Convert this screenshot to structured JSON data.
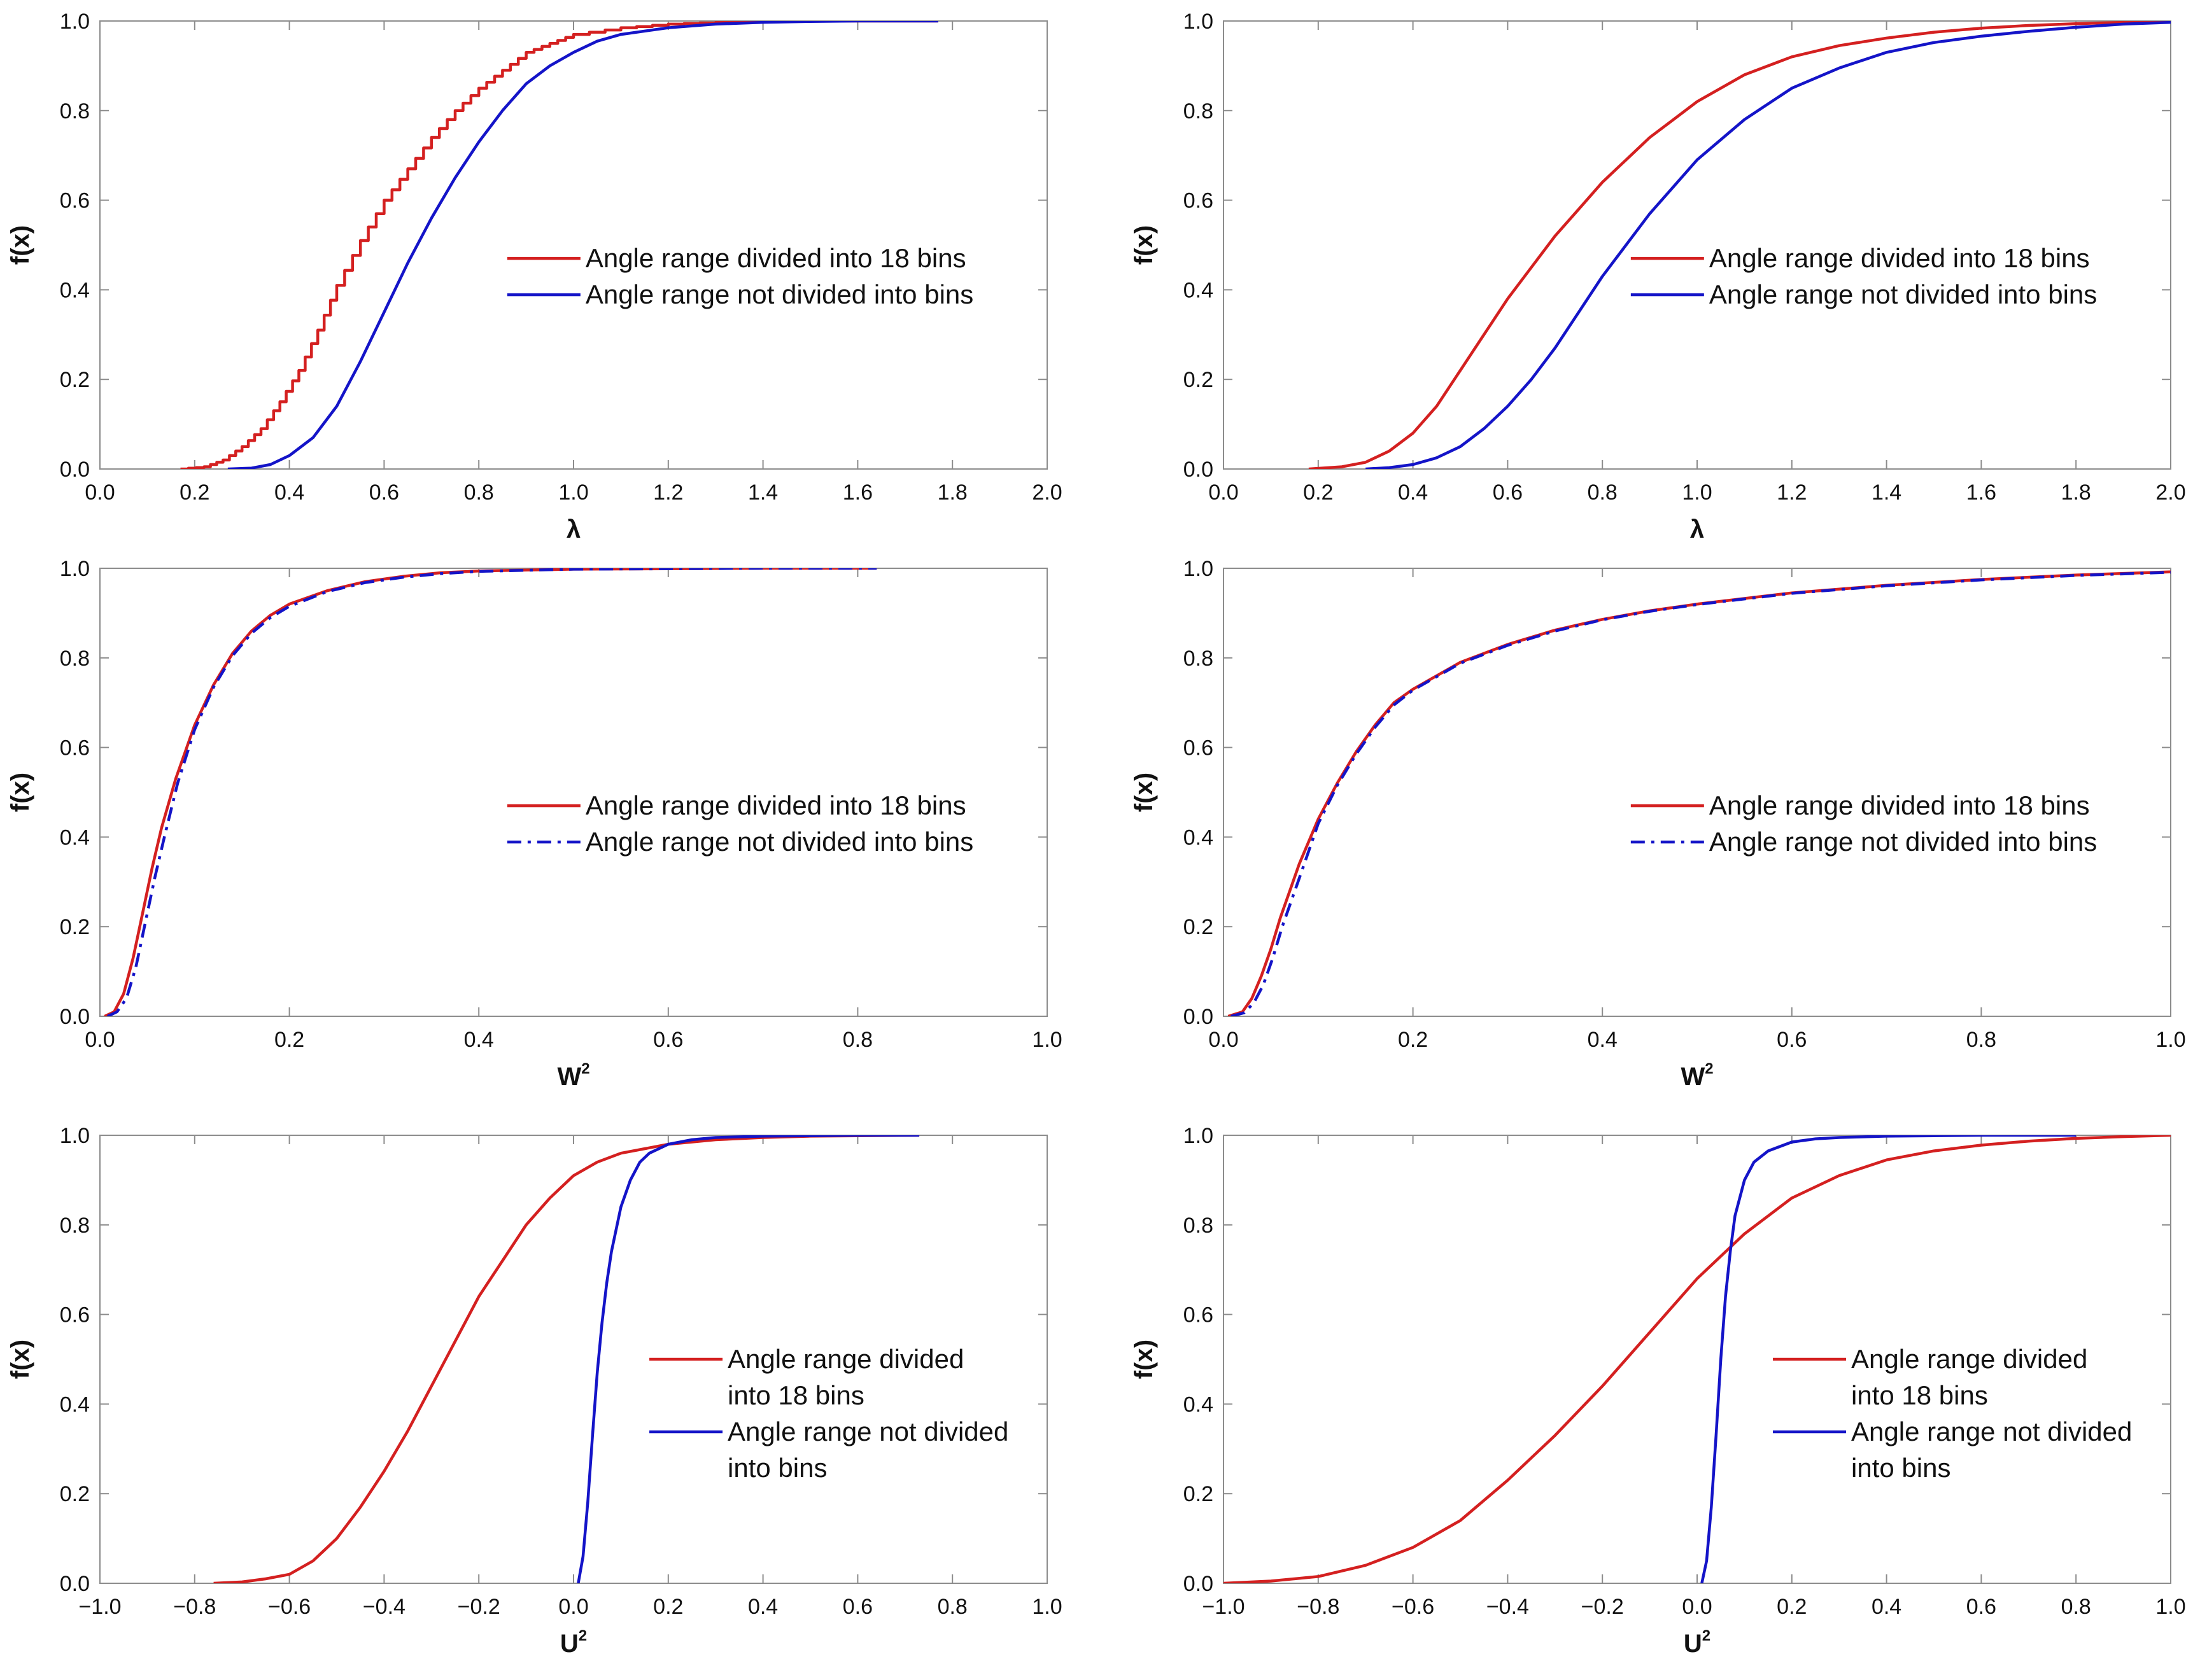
{
  "colors": {
    "red": "#d42020",
    "blue": "#1414c8",
    "axis": "#8c8c8c",
    "text": "#111111"
  },
  "chart_data": [
    {
      "id": "a",
      "type": "line",
      "xlabel": "λ",
      "xlabel_sup": "",
      "ylabel": "f(x)",
      "xlim": [
        0,
        2
      ],
      "ylim": [
        0,
        1
      ],
      "xticks": [
        0,
        0.2,
        0.4,
        0.6,
        0.8,
        1.0,
        1.2,
        1.4,
        1.6,
        1.8,
        2.0
      ],
      "xtick_labels": [
        "0.0",
        "0.2",
        "0.4",
        "0.6",
        "0.8",
        "1.0",
        "1.2",
        "1.4",
        "1.6",
        "1.8",
        "2.0"
      ],
      "yticks": [
        0,
        0.2,
        0.4,
        0.6,
        0.8,
        1.0
      ],
      "ytick_labels": [
        "0.0",
        "0.2",
        "0.4",
        "0.6",
        "0.8",
        "1.0"
      ],
      "legend_placement": "center-right",
      "series": [
        {
          "name": "Angle range divided into 18 bins",
          "name_lines": [
            "Angle range divided into 18 bins"
          ],
          "color": "red",
          "style": "solid",
          "step": true,
          "x": [
            0.17,
            0.22,
            0.26,
            0.3,
            0.34,
            0.38,
            0.42,
            0.46,
            0.5,
            0.55,
            0.6,
            0.65,
            0.7,
            0.75,
            0.8,
            0.85,
            0.9,
            0.95,
            1.0,
            1.1,
            1.2,
            1.3,
            1.4,
            1.5,
            1.6,
            1.77
          ],
          "y": [
            0,
            0.005,
            0.02,
            0.05,
            0.09,
            0.15,
            0.22,
            0.31,
            0.41,
            0.51,
            0.6,
            0.67,
            0.74,
            0.8,
            0.85,
            0.89,
            0.93,
            0.95,
            0.97,
            0.985,
            0.993,
            0.997,
            0.999,
            1.0,
            1.0,
            1.0
          ]
        },
        {
          "name": "Angle range not divided into bins",
          "name_lines": [
            "Angle range not divided into bins"
          ],
          "color": "blue",
          "style": "solid",
          "step": false,
          "x": [
            0.27,
            0.32,
            0.36,
            0.4,
            0.45,
            0.5,
            0.55,
            0.6,
            0.65,
            0.7,
            0.75,
            0.8,
            0.85,
            0.9,
            0.95,
            1.0,
            1.05,
            1.1,
            1.2,
            1.3,
            1.4,
            1.5,
            1.6,
            1.77
          ],
          "y": [
            0,
            0.002,
            0.01,
            0.03,
            0.07,
            0.14,
            0.24,
            0.35,
            0.46,
            0.56,
            0.65,
            0.73,
            0.8,
            0.86,
            0.9,
            0.93,
            0.955,
            0.97,
            0.985,
            0.993,
            0.997,
            0.999,
            1.0,
            1.0
          ]
        }
      ]
    },
    {
      "id": "b",
      "type": "line",
      "xlabel": "λ",
      "xlabel_sup": "",
      "ylabel": "f(x)",
      "xlim": [
        0,
        2
      ],
      "ylim": [
        0,
        1
      ],
      "xticks": [
        0,
        0.2,
        0.4,
        0.6,
        0.8,
        1.0,
        1.2,
        1.4,
        1.6,
        1.8,
        2.0
      ],
      "xtick_labels": [
        "0.0",
        "0.2",
        "0.4",
        "0.6",
        "0.8",
        "1.0",
        "1.2",
        "1.4",
        "1.6",
        "1.8",
        "2.0"
      ],
      "yticks": [
        0,
        0.2,
        0.4,
        0.6,
        0.8,
        1.0
      ],
      "ytick_labels": [
        "0.0",
        "0.2",
        "0.4",
        "0.6",
        "0.8",
        "1.0"
      ],
      "legend_placement": "center-right",
      "series": [
        {
          "name": "Angle range divided into 18 bins",
          "name_lines": [
            "Angle range divided into 18 bins"
          ],
          "color": "red",
          "style": "solid",
          "step": false,
          "x": [
            0.18,
            0.25,
            0.3,
            0.35,
            0.4,
            0.45,
            0.5,
            0.55,
            0.6,
            0.65,
            0.7,
            0.75,
            0.8,
            0.85,
            0.9,
            0.95,
            1.0,
            1.1,
            1.2,
            1.3,
            1.4,
            1.5,
            1.6,
            1.7,
            1.8,
            1.9,
            2.0
          ],
          "y": [
            0,
            0.005,
            0.015,
            0.04,
            0.08,
            0.14,
            0.22,
            0.3,
            0.38,
            0.45,
            0.52,
            0.58,
            0.64,
            0.69,
            0.74,
            0.78,
            0.82,
            0.88,
            0.92,
            0.945,
            0.962,
            0.975,
            0.984,
            0.99,
            0.994,
            0.997,
            0.999
          ]
        },
        {
          "name": "Angle range not divided into bins",
          "name_lines": [
            "Angle range not divided into bins"
          ],
          "color": "blue",
          "style": "solid",
          "step": false,
          "x": [
            0.3,
            0.35,
            0.4,
            0.45,
            0.5,
            0.55,
            0.6,
            0.65,
            0.7,
            0.75,
            0.8,
            0.85,
            0.9,
            0.95,
            1.0,
            1.1,
            1.2,
            1.3,
            1.4,
            1.5,
            1.6,
            1.7,
            1.8,
            1.9,
            2.0
          ],
          "y": [
            0,
            0.003,
            0.01,
            0.025,
            0.05,
            0.09,
            0.14,
            0.2,
            0.27,
            0.35,
            0.43,
            0.5,
            0.57,
            0.63,
            0.69,
            0.78,
            0.85,
            0.895,
            0.93,
            0.952,
            0.966,
            0.977,
            0.986,
            0.993,
            0.997
          ]
        }
      ]
    },
    {
      "id": "c",
      "type": "line",
      "xlabel": "W",
      "xlabel_sup": "2",
      "ylabel": "f(x)",
      "xlim": [
        0,
        1
      ],
      "ylim": [
        0,
        1
      ],
      "xticks": [
        0,
        0.2,
        0.4,
        0.6,
        0.8,
        1.0
      ],
      "xtick_labels": [
        "0.0",
        "0.2",
        "0.4",
        "0.6",
        "0.8",
        "1.0"
      ],
      "yticks": [
        0,
        0.2,
        0.4,
        0.6,
        0.8,
        1.0
      ],
      "ytick_labels": [
        "0.0",
        "0.2",
        "0.4",
        "0.6",
        "0.8",
        "1.0"
      ],
      "legend_placement": "center-right",
      "series": [
        {
          "name": "Angle range divided into 18 bins",
          "name_lines": [
            "Angle range divided into 18 bins"
          ],
          "color": "red",
          "style": "solid",
          "step": false,
          "x": [
            0.005,
            0.015,
            0.025,
            0.035,
            0.045,
            0.055,
            0.065,
            0.08,
            0.1,
            0.12,
            0.14,
            0.16,
            0.18,
            0.2,
            0.24,
            0.28,
            0.32,
            0.36,
            0.4,
            0.5,
            0.6,
            0.7,
            0.82
          ],
          "y": [
            0,
            0.01,
            0.05,
            0.13,
            0.23,
            0.33,
            0.42,
            0.53,
            0.65,
            0.74,
            0.81,
            0.86,
            0.895,
            0.92,
            0.95,
            0.97,
            0.982,
            0.99,
            0.994,
            0.998,
            0.999,
            1.0,
            1.0
          ]
        },
        {
          "name": "Angle range not divided into bins",
          "name_lines": [
            "Angle range not divided into bins"
          ],
          "color": "blue",
          "style": "dashdot",
          "step": false,
          "x": [
            0.008,
            0.018,
            0.028,
            0.038,
            0.048,
            0.058,
            0.068,
            0.082,
            0.1,
            0.12,
            0.14,
            0.16,
            0.18,
            0.2,
            0.24,
            0.28,
            0.32,
            0.36,
            0.4,
            0.5,
            0.6,
            0.7,
            0.82
          ],
          "y": [
            0,
            0.01,
            0.04,
            0.11,
            0.21,
            0.31,
            0.4,
            0.52,
            0.64,
            0.735,
            0.805,
            0.855,
            0.89,
            0.915,
            0.948,
            0.968,
            0.98,
            0.988,
            0.993,
            0.998,
            0.999,
            1.0,
            1.0
          ]
        }
      ]
    },
    {
      "id": "d",
      "type": "line",
      "xlabel": "W",
      "xlabel_sup": "2",
      "ylabel": "f(x)",
      "xlim": [
        0,
        1
      ],
      "ylim": [
        0,
        1
      ],
      "xticks": [
        0,
        0.2,
        0.4,
        0.6,
        0.8,
        1.0
      ],
      "xtick_labels": [
        "0.0",
        "0.2",
        "0.4",
        "0.6",
        "0.8",
        "1.0"
      ],
      "yticks": [
        0,
        0.2,
        0.4,
        0.6,
        0.8,
        1.0
      ],
      "ytick_labels": [
        "0.0",
        "0.2",
        "0.4",
        "0.6",
        "0.8",
        "1.0"
      ],
      "legend_placement": "center-right",
      "series": [
        {
          "name": "Angle range divided into 18 bins",
          "name_lines": [
            "Angle range divided into 18 bins"
          ],
          "color": "red",
          "style": "solid",
          "step": false,
          "x": [
            0.005,
            0.02,
            0.03,
            0.04,
            0.05,
            0.06,
            0.07,
            0.08,
            0.1,
            0.12,
            0.14,
            0.16,
            0.18,
            0.2,
            0.25,
            0.3,
            0.35,
            0.4,
            0.45,
            0.5,
            0.6,
            0.7,
            0.8,
            0.9,
            1.0
          ],
          "y": [
            0,
            0.01,
            0.04,
            0.09,
            0.15,
            0.22,
            0.28,
            0.34,
            0.44,
            0.52,
            0.59,
            0.65,
            0.7,
            0.73,
            0.79,
            0.83,
            0.862,
            0.886,
            0.905,
            0.92,
            0.945,
            0.962,
            0.975,
            0.985,
            0.992
          ]
        },
        {
          "name": "Angle range not divided into bins",
          "name_lines": [
            "Angle range not divided into bins"
          ],
          "color": "blue",
          "style": "dashdot",
          "step": false,
          "x": [
            0.008,
            0.022,
            0.032,
            0.042,
            0.052,
            0.062,
            0.072,
            0.082,
            0.1,
            0.12,
            0.14,
            0.16,
            0.18,
            0.2,
            0.25,
            0.3,
            0.35,
            0.4,
            0.45,
            0.5,
            0.6,
            0.7,
            0.8,
            0.9,
            1.0
          ],
          "y": [
            0,
            0.008,
            0.03,
            0.07,
            0.13,
            0.2,
            0.26,
            0.32,
            0.43,
            0.515,
            0.585,
            0.645,
            0.695,
            0.728,
            0.788,
            0.828,
            0.86,
            0.885,
            0.904,
            0.919,
            0.944,
            0.961,
            0.974,
            0.984,
            0.991
          ]
        }
      ]
    },
    {
      "id": "e",
      "type": "line",
      "xlabel": "U",
      "xlabel_sup": "2",
      "ylabel": "f(x)",
      "xlim": [
        -1,
        1
      ],
      "ylim": [
        0,
        1
      ],
      "xticks": [
        -1.0,
        -0.8,
        -0.6,
        -0.4,
        -0.2,
        0.0,
        0.2,
        0.4,
        0.6,
        0.8,
        1.0
      ],
      "xtick_labels": [
        "−1.0",
        "−0.8",
        "−0.6",
        "−0.4",
        "−0.2",
        "0.0",
        "0.2",
        "0.4",
        "0.6",
        "0.8",
        "1.0"
      ],
      "yticks": [
        0,
        0.2,
        0.4,
        0.6,
        0.8,
        1.0
      ],
      "ytick_labels": [
        "0.0",
        "0.2",
        "0.4",
        "0.6",
        "0.8",
        "1.0"
      ],
      "legend_placement": "lower-right",
      "series": [
        {
          "name": "Angle range divided into 18 bins",
          "name_lines": [
            "Angle range divided",
            "into 18 bins"
          ],
          "color": "red",
          "style": "solid",
          "step": false,
          "x": [
            -0.76,
            -0.7,
            -0.65,
            -0.6,
            -0.55,
            -0.5,
            -0.45,
            -0.4,
            -0.35,
            -0.3,
            -0.25,
            -0.2,
            -0.15,
            -0.1,
            -0.05,
            0.0,
            0.05,
            0.1,
            0.2,
            0.3,
            0.4,
            0.5,
            0.6,
            0.73
          ],
          "y": [
            0,
            0.003,
            0.01,
            0.02,
            0.05,
            0.1,
            0.17,
            0.25,
            0.34,
            0.44,
            0.54,
            0.64,
            0.72,
            0.8,
            0.86,
            0.91,
            0.94,
            0.96,
            0.98,
            0.99,
            0.995,
            0.998,
            0.999,
            1.0
          ]
        },
        {
          "name": "Angle range not divided into bins",
          "name_lines": [
            "Angle range not divided",
            "into bins"
          ],
          "color": "blue",
          "style": "solid",
          "step": false,
          "x": [
            0.01,
            0.02,
            0.03,
            0.04,
            0.05,
            0.06,
            0.07,
            0.08,
            0.1,
            0.12,
            0.14,
            0.16,
            0.2,
            0.25,
            0.3,
            0.4,
            0.5,
            0.6,
            0.73
          ],
          "y": [
            0,
            0.06,
            0.18,
            0.33,
            0.47,
            0.58,
            0.67,
            0.74,
            0.84,
            0.9,
            0.94,
            0.96,
            0.98,
            0.99,
            0.995,
            0.998,
            0.999,
            1.0,
            1.0
          ]
        }
      ]
    },
    {
      "id": "f",
      "type": "line",
      "xlabel": "U",
      "xlabel_sup": "2",
      "ylabel": "f(x)",
      "xlim": [
        -1,
        1
      ],
      "ylim": [
        0,
        1
      ],
      "xticks": [
        -1.0,
        -0.8,
        -0.6,
        -0.4,
        -0.2,
        0.0,
        0.2,
        0.4,
        0.6,
        0.8,
        1.0
      ],
      "xtick_labels": [
        "−1.0",
        "−0.8",
        "−0.6",
        "−0.4",
        "−0.2",
        "0.0",
        "0.2",
        "0.4",
        "0.6",
        "0.8",
        "1.0"
      ],
      "yticks": [
        0,
        0.2,
        0.4,
        0.6,
        0.8,
        1.0
      ],
      "ytick_labels": [
        "0.0",
        "0.2",
        "0.4",
        "0.6",
        "0.8",
        "1.0"
      ],
      "legend_placement": "lower-right",
      "series": [
        {
          "name": "Angle range divided into 18 bins",
          "name_lines": [
            "Angle range divided",
            "into 18 bins"
          ],
          "color": "red",
          "style": "solid",
          "step": false,
          "x": [
            -1.0,
            -0.9,
            -0.8,
            -0.7,
            -0.6,
            -0.5,
            -0.4,
            -0.3,
            -0.2,
            -0.1,
            0.0,
            0.1,
            0.2,
            0.3,
            0.4,
            0.5,
            0.6,
            0.7,
            0.8,
            0.9,
            1.0
          ],
          "y": [
            0,
            0.005,
            0.015,
            0.04,
            0.08,
            0.14,
            0.23,
            0.33,
            0.44,
            0.56,
            0.68,
            0.78,
            0.86,
            0.91,
            0.945,
            0.965,
            0.978,
            0.987,
            0.993,
            0.997,
            1.0
          ]
        },
        {
          "name": "Angle range not divided into bins",
          "name_lines": [
            "Angle range not divided",
            "into bins"
          ],
          "color": "blue",
          "style": "solid",
          "step": false,
          "x": [
            0.01,
            0.02,
            0.03,
            0.04,
            0.05,
            0.06,
            0.07,
            0.08,
            0.1,
            0.12,
            0.15,
            0.2,
            0.25,
            0.3,
            0.4,
            0.5,
            0.6,
            0.7,
            0.8
          ],
          "y": [
            0,
            0.05,
            0.17,
            0.33,
            0.5,
            0.64,
            0.74,
            0.82,
            0.9,
            0.94,
            0.965,
            0.985,
            0.992,
            0.995,
            0.998,
            0.999,
            1.0,
            1.0,
            1.0
          ]
        }
      ]
    }
  ]
}
